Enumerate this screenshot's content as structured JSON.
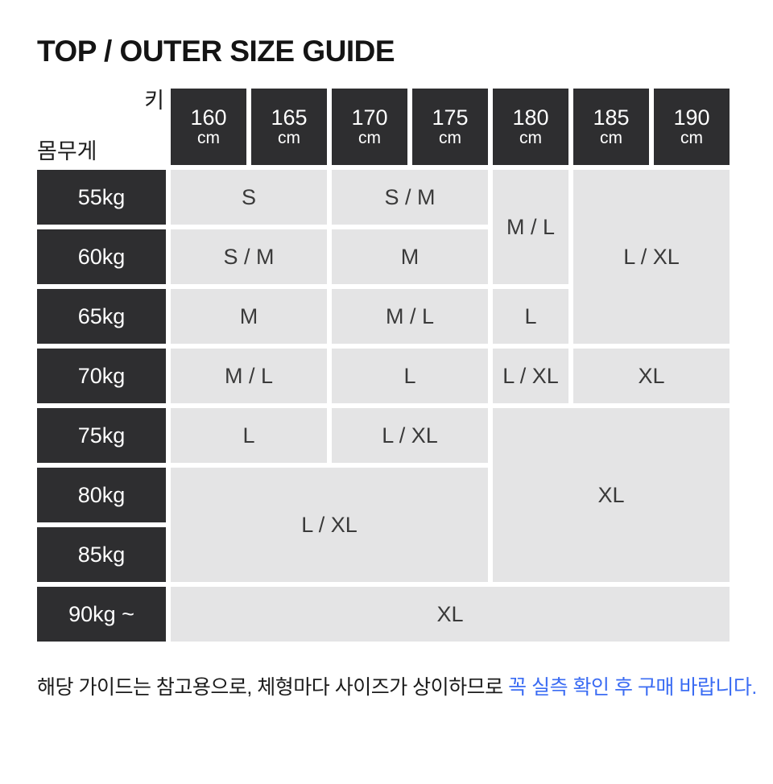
{
  "title": "TOP / OUTER SIZE GUIDE",
  "colors": {
    "header_bg": "#2E2E30",
    "header_text": "#FFFFFF",
    "cell_bg": "#E4E4E5",
    "cell_text": "#3A3A3A",
    "note_highlight": "#3B6CF3"
  },
  "table": {
    "corner": {
      "height_label": "키",
      "weight_label": "몸무게"
    },
    "height_columns": [
      {
        "value": "160",
        "unit": "cm"
      },
      {
        "value": "165",
        "unit": "cm"
      },
      {
        "value": "170",
        "unit": "cm"
      },
      {
        "value": "175",
        "unit": "cm"
      },
      {
        "value": "180",
        "unit": "cm"
      },
      {
        "value": "185",
        "unit": "cm"
      },
      {
        "value": "190",
        "unit": "cm"
      }
    ],
    "rows": [
      {
        "weight": "55kg",
        "cells": [
          {
            "size": "S",
            "colspan": 2,
            "rowspan": 1
          },
          {
            "size": "S / M",
            "colspan": 2,
            "rowspan": 1
          },
          {
            "size": "M / L",
            "colspan": 1,
            "rowspan": 2
          },
          {
            "size": "L / XL",
            "colspan": 2,
            "rowspan": 3
          }
        ]
      },
      {
        "weight": "60kg",
        "cells": [
          {
            "size": "S / M",
            "colspan": 2,
            "rowspan": 1
          },
          {
            "size": "M",
            "colspan": 2,
            "rowspan": 1
          }
        ]
      },
      {
        "weight": "65kg",
        "cells": [
          {
            "size": "M",
            "colspan": 2,
            "rowspan": 1
          },
          {
            "size": "M / L",
            "colspan": 2,
            "rowspan": 1
          },
          {
            "size": "L",
            "colspan": 1,
            "rowspan": 1
          }
        ]
      },
      {
        "weight": "70kg",
        "cells": [
          {
            "size": "M / L",
            "colspan": 2,
            "rowspan": 1
          },
          {
            "size": "L",
            "colspan": 2,
            "rowspan": 1
          },
          {
            "size": "L / XL",
            "colspan": 1,
            "rowspan": 1
          },
          {
            "size": "XL",
            "colspan": 2,
            "rowspan": 1
          }
        ]
      },
      {
        "weight": "75kg",
        "cells": [
          {
            "size": "L",
            "colspan": 2,
            "rowspan": 1
          },
          {
            "size": "L / XL",
            "colspan": 2,
            "rowspan": 1
          },
          {
            "size": "XL",
            "colspan": 3,
            "rowspan": 3
          }
        ]
      },
      {
        "weight": "80kg",
        "cells": [
          {
            "size": "L / XL",
            "colspan": 4,
            "rowspan": 2
          }
        ]
      },
      {
        "weight": "85kg",
        "cells": []
      },
      {
        "weight": "90kg ~",
        "cells": [
          {
            "size": "XL",
            "colspan": 7,
            "rowspan": 1
          }
        ]
      }
    ]
  },
  "note": {
    "normal": "해당 가이드는 참고용으로, 체형마다 사이즈가 상이하므로 ",
    "highlight": "꼭 실측 확인 후 구매 바랍니다."
  }
}
